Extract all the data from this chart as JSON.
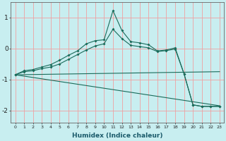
{
  "xlabel": "Humidex (Indice chaleur)",
  "background_color": "#c8eef0",
  "grid_color": "#f0a0a0",
  "line_color": "#1a6b5a",
  "xlim": [
    -0.5,
    23.5
  ],
  "ylim": [
    -2.4,
    1.5
  ],
  "yticks": [
    -2,
    -1,
    0,
    1
  ],
  "xticks": [
    0,
    1,
    2,
    3,
    4,
    5,
    6,
    7,
    8,
    9,
    10,
    11,
    12,
    13,
    14,
    15,
    16,
    17,
    18,
    19,
    20,
    21,
    22,
    23
  ],
  "curve1_x": [
    0,
    1,
    2,
    3,
    4,
    5,
    6,
    7,
    8,
    9,
    10,
    11,
    12,
    13,
    14,
    15,
    16,
    17,
    18,
    19,
    20,
    21,
    22,
    23
  ],
  "curve1_y": [
    -0.85,
    -0.72,
    -0.68,
    -0.6,
    -0.52,
    -0.38,
    -0.22,
    -0.08,
    0.15,
    0.25,
    0.28,
    1.22,
    0.58,
    0.22,
    0.18,
    0.12,
    -0.08,
    -0.05,
    0.02,
    -0.82,
    -1.82,
    -1.87,
    -1.87,
    -1.87
  ],
  "curve2_x": [
    0,
    1,
    2,
    3,
    4,
    5,
    6,
    7,
    8,
    9,
    10,
    11,
    12,
    13,
    14,
    15,
    16,
    17,
    18,
    19,
    20,
    21,
    22,
    23
  ],
  "curve2_y": [
    -0.85,
    -0.75,
    -0.72,
    -0.65,
    -0.6,
    -0.5,
    -0.35,
    -0.2,
    -0.05,
    0.08,
    0.15,
    0.62,
    0.32,
    0.1,
    0.06,
    0.02,
    -0.1,
    -0.07,
    -0.02,
    -0.82,
    -1.82,
    -1.87,
    -1.87,
    -1.87
  ],
  "curve3_x": [
    0,
    23
  ],
  "curve3_y": [
    -0.85,
    -0.75
  ],
  "curve4_x": [
    0,
    23
  ],
  "curve4_y": [
    -0.85,
    -1.85
  ]
}
